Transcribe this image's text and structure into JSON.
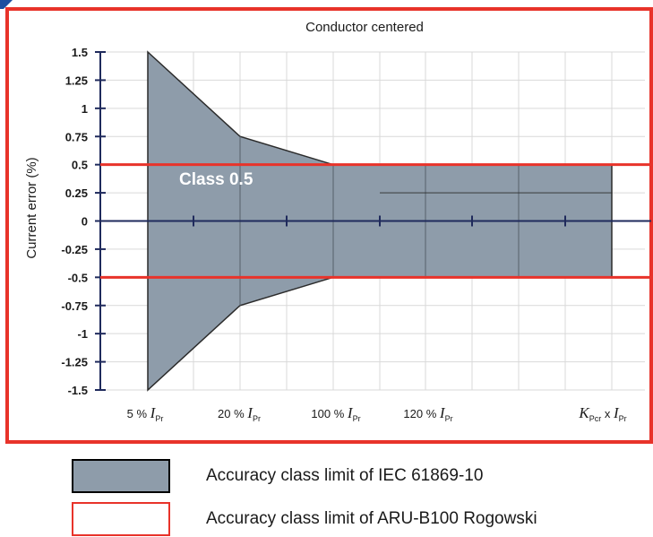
{
  "chart_data": {
    "type": "area",
    "title": "Conductor centered",
    "ylabel": "Current error (%)",
    "xlabel": "",
    "ylim": [
      -1.5,
      1.5
    ],
    "yticks": [
      "1.5",
      "1.25",
      "1",
      "0.75",
      "0.5",
      "0.25",
      "0",
      "-0.25",
      "-0.5",
      "-0.75",
      "-1",
      "-1.25",
      "-1.5"
    ],
    "x_categories": [
      {
        "pre": "5 %",
        "sym": "I",
        "sub": "Pr",
        "k": false
      },
      {
        "pre": "20 %",
        "sym": "I",
        "sub": "Pr",
        "k": false
      },
      {
        "pre": "100 %",
        "sym": "I",
        "sub": "Pr",
        "k": false
      },
      {
        "pre": "120 %",
        "sym": "I",
        "sub": "Pr",
        "k": false
      },
      {
        "pre": "",
        "sym": "I",
        "sub": "Pr",
        "k": true,
        "ksym": "K",
        "ksub": "Pcr",
        "mul": "x"
      }
    ],
    "iec_limit": {
      "x": [
        "5 %",
        "20 %",
        "100 %",
        "120 %",
        "K_Pcr x I_Pr"
      ],
      "upper": [
        1.5,
        0.75,
        0.5,
        0.5,
        0.5
      ],
      "lower": [
        -1.5,
        -0.75,
        -0.5,
        -0.5,
        -0.5
      ]
    },
    "aru_limit": {
      "upper": 0.5,
      "lower": -0.5
    },
    "annotation": "Class  0.5",
    "grid": true,
    "colors": {
      "fill": "#8e9caa",
      "axis": "#1f2a5c",
      "limit": "#e8332a",
      "frame": "#e8332a",
      "corner_mark": "#1a4fa0"
    }
  },
  "legend": [
    {
      "label": "Accuracy class limit of IEC 61869-10",
      "style": "filled-dark-border"
    },
    {
      "label": "Accuracy class limit of ARU-B100 Rogowski",
      "style": "red-border"
    }
  ]
}
